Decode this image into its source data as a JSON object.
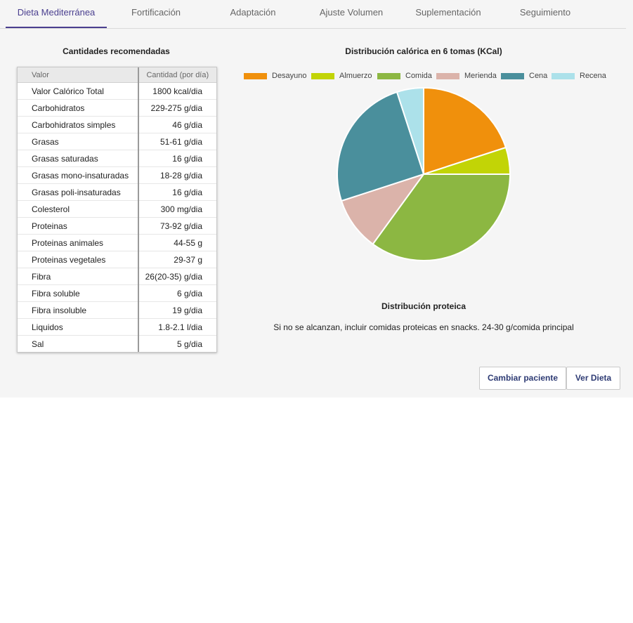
{
  "tabs": [
    {
      "label": "Dieta Mediterránea",
      "active": true
    },
    {
      "label": "Fortificación"
    },
    {
      "label": "Adaptación"
    },
    {
      "label": "Ajuste Volumen"
    },
    {
      "label": "Suplementación"
    },
    {
      "label": "Seguimiento"
    }
  ],
  "table": {
    "title": "Cantidades recomendadas",
    "headers": {
      "valor": "Valor",
      "cantidad": "Cantidad (por día)"
    },
    "rows": [
      {
        "name": "Valor Calórico Total",
        "value": "1800 kcal/dia"
      },
      {
        "name": "Carbohidratos",
        "value": "229-275 g/dia"
      },
      {
        "name": "Carbohidratos simples",
        "value": "46 g/dia"
      },
      {
        "name": "Grasas",
        "value": "51-61 g/dia"
      },
      {
        "name": "Grasas saturadas",
        "value": "16 g/dia"
      },
      {
        "name": "Grasas mono-insaturadas",
        "value": "18-28 g/dia"
      },
      {
        "name": "Grasas poli-insaturadas",
        "value": "16 g/dia"
      },
      {
        "name": "Colesterol",
        "value": "300 mg/dia"
      },
      {
        "name": "Proteinas",
        "value": "73-92 g/dia"
      },
      {
        "name": "Proteinas animales",
        "value": "44-55 g"
      },
      {
        "name": "Proteinas vegetales",
        "value": "29-37 g"
      },
      {
        "name": "Fibra",
        "value": "26(20-35) g/dia"
      },
      {
        "name": "Fibra soluble",
        "value": "6 g/dia"
      },
      {
        "name": "Fibra insoluble",
        "value": "19 g/dia"
      },
      {
        "name": "Liquidos",
        "value": "1.8-2.1 l/dia"
      },
      {
        "name": "Sal",
        "value": "5 g/dia"
      }
    ]
  },
  "chart_data": {
    "type": "pie",
    "title": "Distribución calórica en 6 tomas (KCal)",
    "legend_position": "top",
    "categories": [
      "Desayuno",
      "Almuerzo",
      "Comida",
      "Merienda",
      "Cena",
      "Recena"
    ],
    "values": [
      360,
      90,
      630,
      180,
      450,
      90
    ],
    "colors": [
      "#f0900c",
      "#c2d406",
      "#8cb742",
      "#dbb3aa",
      "#4a8f9c",
      "#ace1ea"
    ]
  },
  "protein": {
    "title": "Distribución proteica",
    "note": "Si no se alcanzan, incluir comidas proteicas en snacks. 24-30 g/comida principal"
  },
  "buttons": {
    "change_patient": "Cambiar paciente",
    "view_diet": "Ver Dieta"
  }
}
